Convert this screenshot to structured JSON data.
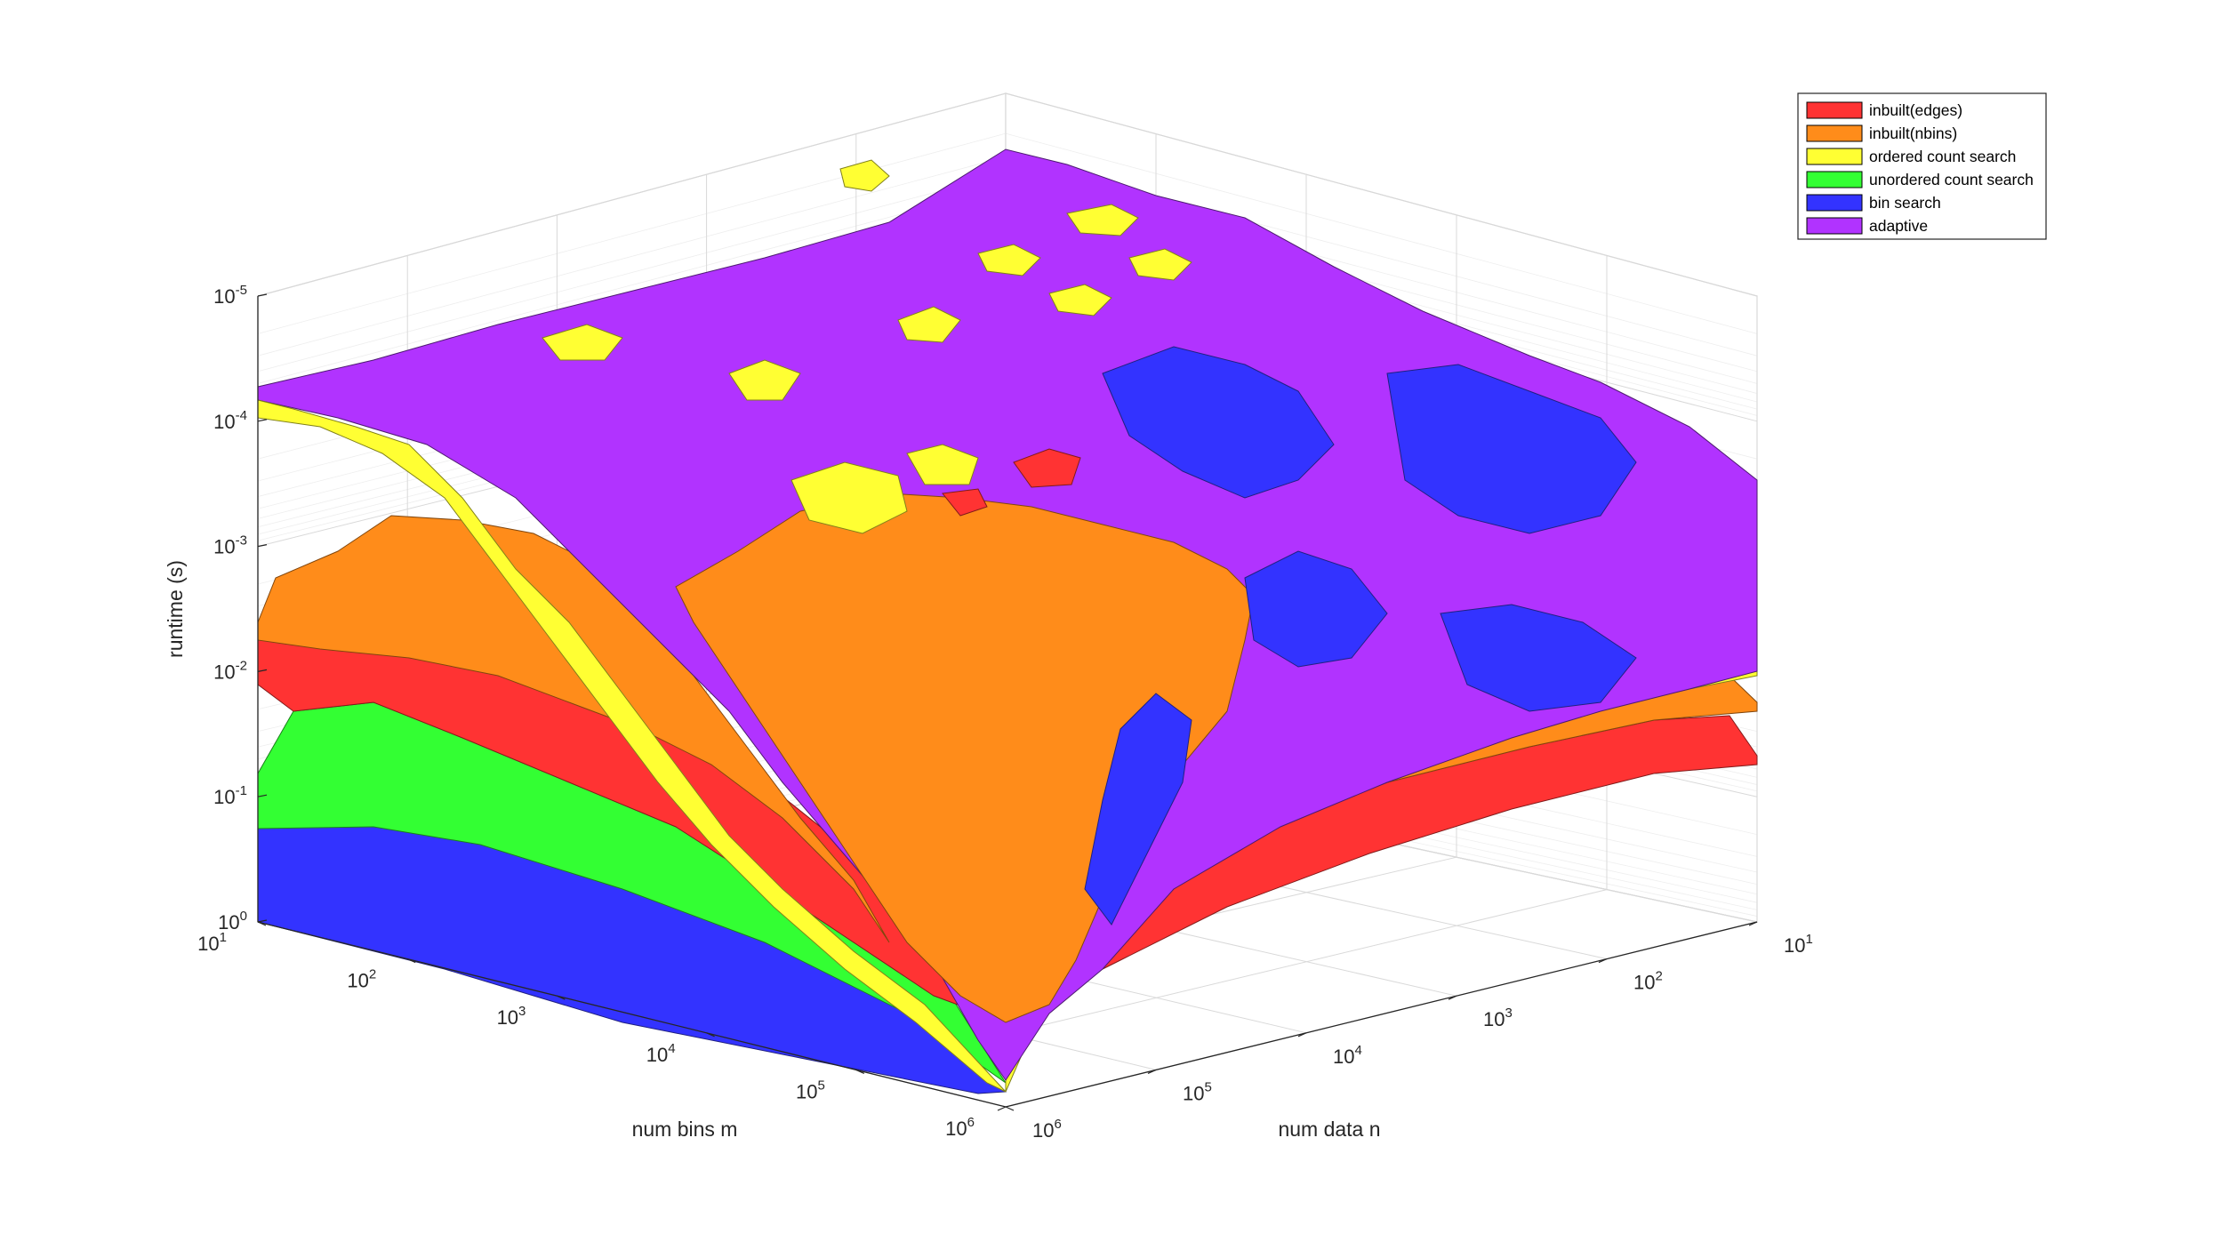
{
  "chart_data": {
    "type": "surface3d",
    "title": "",
    "xlabel": "num bins m",
    "ylabel": "num data n",
    "zlabel": "runtime (s)",
    "x_scale": "log",
    "y_scale": "log",
    "z_scale": "log",
    "z_direction": "reversed",
    "xlim": [
      10,
      1000000
    ],
    "ylim": [
      10,
      1000000
    ],
    "zlim": [
      1e-05,
      1
    ],
    "x_ticks": [
      {
        "base": "10",
        "exp": "1"
      },
      {
        "base": "10",
        "exp": "2"
      },
      {
        "base": "10",
        "exp": "3"
      },
      {
        "base": "10",
        "exp": "4"
      },
      {
        "base": "10",
        "exp": "5"
      },
      {
        "base": "10",
        "exp": "6"
      }
    ],
    "y_ticks": [
      {
        "base": "10",
        "exp": "1"
      },
      {
        "base": "10",
        "exp": "2"
      },
      {
        "base": "10",
        "exp": "3"
      },
      {
        "base": "10",
        "exp": "4"
      },
      {
        "base": "10",
        "exp": "5"
      },
      {
        "base": "10",
        "exp": "6"
      }
    ],
    "z_ticks": [
      {
        "base": "10",
        "exp": "-5"
      },
      {
        "base": "10",
        "exp": "-4"
      },
      {
        "base": "10",
        "exp": "-3"
      },
      {
        "base": "10",
        "exp": "-2"
      },
      {
        "base": "10",
        "exp": "-1"
      },
      {
        "base": "10",
        "exp": "0"
      }
    ],
    "grid": true,
    "legend_position": "top-right",
    "series": [
      {
        "name": "inbuilt(edges)",
        "color": "#ff3333"
      },
      {
        "name": "inbuilt(nbins)",
        "color": "#ff8c1a"
      },
      {
        "name": "ordered count search",
        "color": "#ffff33"
      },
      {
        "name": "unordered count search",
        "color": "#33ff33"
      },
      {
        "name": "bin search",
        "color": "#3333ff"
      },
      {
        "name": "adaptive",
        "color": "#b133ff"
      }
    ],
    "regions": [
      {
        "series": "bin search",
        "area": "large m, small n edge (front-left band)"
      },
      {
        "series": "unordered count search",
        "area": "band above bin search, front-left"
      },
      {
        "series": "inbuilt(edges)",
        "area": "thin band, large m / moderate n"
      },
      {
        "series": "inbuilt(nbins)",
        "area": "central raised region and right band"
      },
      {
        "series": "ordered count search",
        "area": "diagonal ridge from corner and scattered patches"
      },
      {
        "series": "bin search",
        "area": "right-side patches at large n"
      },
      {
        "series": "adaptive",
        "area": "dominant top plateau"
      }
    ]
  }
}
